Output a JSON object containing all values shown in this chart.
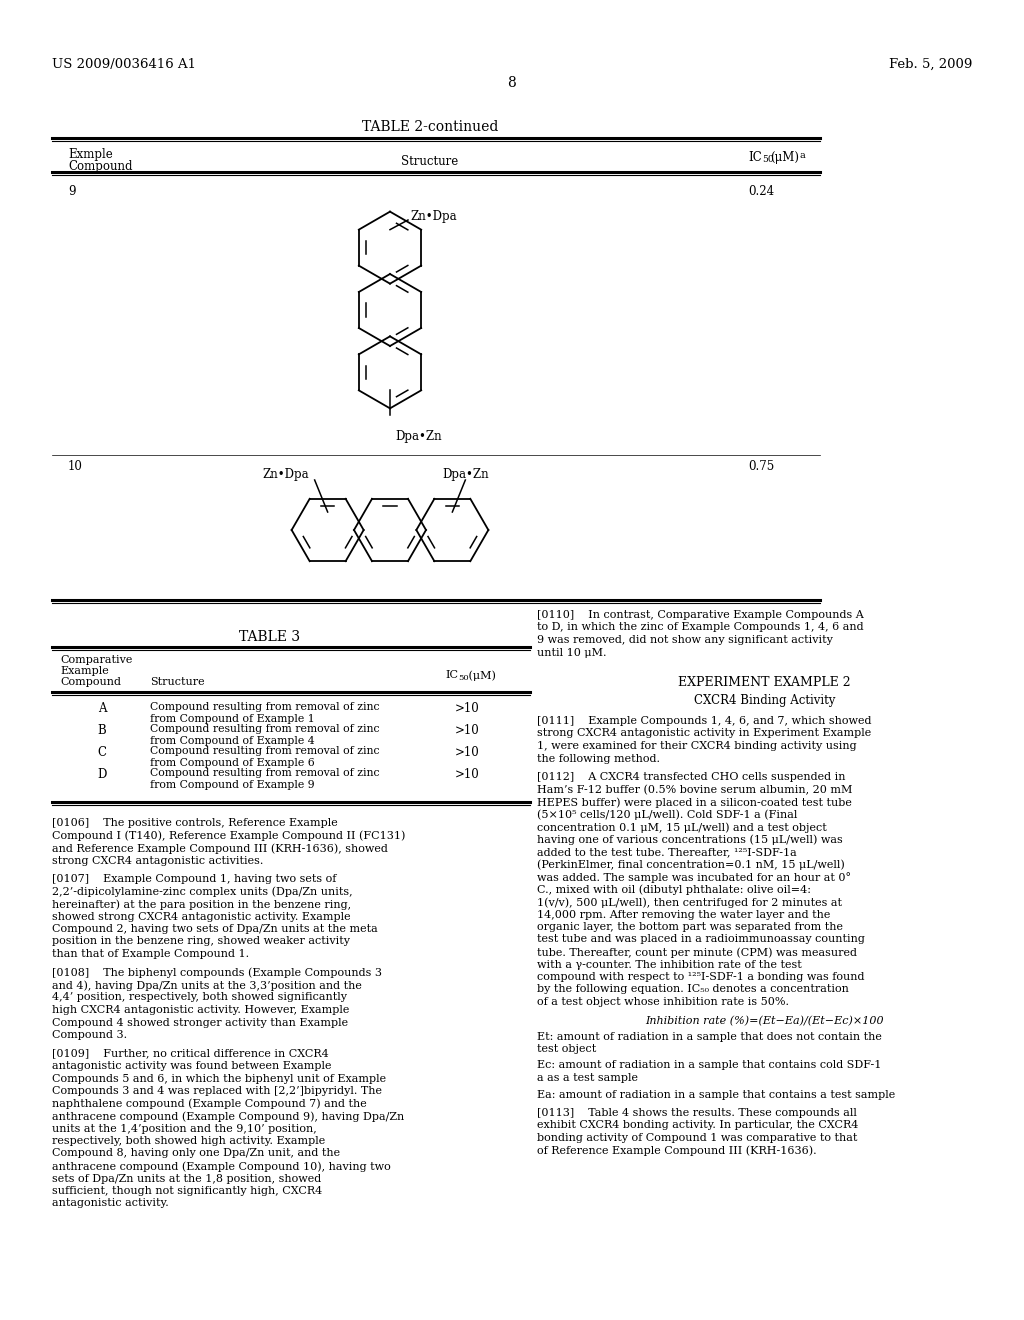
{
  "background_color": "#ffffff",
  "header_left": "US 2009/0036416 A1",
  "header_right": "Feb. 5, 2009",
  "page_number": "8",
  "table2_title": "TABLE 2-continued",
  "table2_row1_compound": "9",
  "table2_row1_ic50": "0.24",
  "table2_row1_label_top": "Zn•Dpa",
  "table2_row1_label_bot": "Dpa•Zn",
  "table2_row2_compound": "10",
  "table2_row2_ic50": "0.75",
  "table2_row2_label_left": "Zn•Dpa",
  "table2_row2_label_right": "Dpa•Zn",
  "table3_title": "TABLE 3",
  "table3_rows": [
    {
      "compound": "A",
      "structure": "Compound resulting from removal of zinc\nfrom Compound of Example 1",
      "ic50": ">10"
    },
    {
      "compound": "B",
      "structure": "Compound resulting from removal of zinc\nfrom Compound of Example 4",
      "ic50": ">10"
    },
    {
      "compound": "C",
      "structure": "Compound resulting from removal of zinc\nfrom Compound of Example 6",
      "ic50": ">10"
    },
    {
      "compound": "D",
      "structure": "Compound resulting from removal of zinc\nfrom Compound of Example 9",
      "ic50": ">10"
    }
  ],
  "para_0106": "[0106]    The positive controls, Reference Example Compound I (T140), Reference Example Compound II (FC131) and Reference Example Compound III (KRH-1636), showed strong CXCR4 antagonistic activities.",
  "para_0107": "[0107]    Example Compound 1, having two sets of 2,2’-dipicolylamine-zinc complex units (Dpa/Zn units, hereinafter) at the para position in the benzene ring, showed strong CXCR4 antagonistic activity. Example Compound 2, having two sets of Dpa/Zn units at the meta position in the benzene ring, showed weaker activity than that of Example Compound 1.",
  "para_0108": "[0108]    The biphenyl compounds (Example Compounds 3 and 4), having Dpa/Zn units at the 3,3’position and the 4,4’ position, respectively, both showed significantly high CXCR4 antagonistic activity. However, Example Compound 4 showed stronger activity than Example Compound 3.",
  "para_0109": "[0109]    Further, no critical difference in CXCR4 antagonistic activity was found between Example Compounds 5 and 6, in which the biphenyl unit of Example Compounds 3 and 4 was replaced with [2,2’]bipyridyl. The naphthalene compound (Example Compound 7) and the anthracene compound (Example Compound 9), having Dpa/Zn units at the 1,4’position and the 9,10’ position, respectively, both showed high activity. Example Compound 8, having only one Dpa/Zn unit, and the anthracene compound (Example Compound 10), having two sets of Dpa/Zn units at the 1,8 position, showed sufficient, though not significantly high, CXCR4 antagonistic activity.",
  "para_0110": "[0110]    In contrast, Comparative Example Compounds A to D, in which the zinc of Example Compounds 1, 4, 6 and 9 was removed, did not show any significant activity until 10 μM.",
  "exp_example2_title": "EXPERIMENT EXAMPLE 2",
  "exp_example2_subtitle": "CXCR4 Binding Activity",
  "para_0111": "[0111]    Example Compounds 1, 4, 6, and 7, which showed strong CXCR4 antagonistic activity in Experiment Example 1, were examined for their CXCR4 binding activity using the following method.",
  "para_0112": "[0112]    A CXCR4 transfected CHO cells suspended in Ham’s F-12 buffer (0.5% bovine serum albumin, 20 mM HEPES buffer) were placed in a silicon-coated test tube (5×10⁵ cells/120 μL/well). Cold SDF-1 a (Final concentration 0.1 μM, 15 μL/well) and a test object having one of various concentrations (15 μL/well) was added to the test tube. Thereafter, ¹²⁵I-SDF-1a (PerkinElmer, final concentration=0.1 nM, 15 μL/well) was added. The sample was incubated for an hour at 0° C., mixed with oil (dibutyl phthalate: olive oil=4: 1(v/v), 500 μL/well), then centrifuged for 2 minutes at 14,000 rpm. After removing the water layer and the organic layer, the bottom part was separated from the test tube and was placed in a radioimmunoassay counting tube. Thereafter, count per minute (CPM) was measured with a γ-counter. The inhibition rate of the test compound with respect to ¹²⁵I-SDF-1 a bonding was found by the following equation. IC₅₀ denotes a concentration of a test object whose inhibition rate is 50%.",
  "inhibition_eq": "Inhibition rate (%)=(Et−Ea)/(Et−Ec)×100",
  "et_def": "Et: amount of radiation in a sample that does not contain the\ntest object",
  "ec_def": "Ec: amount of radiation in a sample that contains cold SDF-1\na as a test sample",
  "ea_def": "Ea: amount of radiation in a sample that contains a test sample",
  "para_0113": "[0113]    Table 4 shows the results. These compounds all exhibit CXCR4 bonding activity. In particular, the CXCR4 bonding activity of Compound 1 was comparative to that of Reference Example Compound III (KRH-1636)."
}
